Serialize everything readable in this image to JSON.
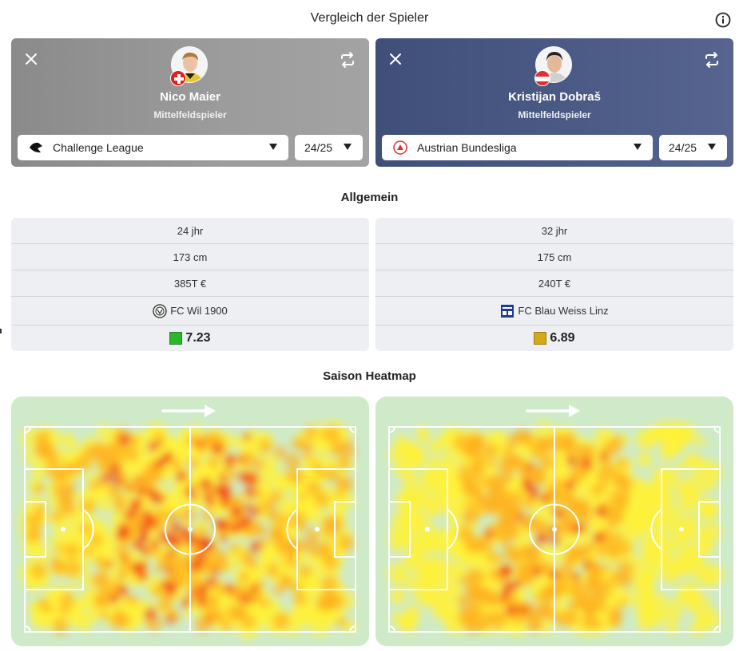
{
  "header": {
    "title": "Vergleich der Spieler",
    "info_icon": "info-icon"
  },
  "players": [
    {
      "name": "Nico Maier",
      "position": "Mittelfeldspieler",
      "flag": "switzerland",
      "league": "Challenge League",
      "season": "24/25",
      "card_color": "#8f8f8f"
    },
    {
      "name": "Kristijan Dobraš",
      "position": "Mittelfeldspieler",
      "flag": "austria",
      "league": "Austrian Bundesliga",
      "season": "24/25",
      "card_color": "#4a5985"
    }
  ],
  "general": {
    "title": "Allgemein",
    "left": {
      "age": "24 jhr",
      "height": "173 cm",
      "value": "385T €",
      "club": "FC Wil 1900",
      "rating": "7.23",
      "rating_color": "#2db52d"
    },
    "right": {
      "age": "32 jhr",
      "height": "175 cm",
      "value": "240T €",
      "club": "FC Blau Weiss Linz",
      "rating": "6.89",
      "rating_color": "#d4a916"
    }
  },
  "heatmap": {
    "title": "Saison Heatmap",
    "direction": "left-to-right"
  }
}
